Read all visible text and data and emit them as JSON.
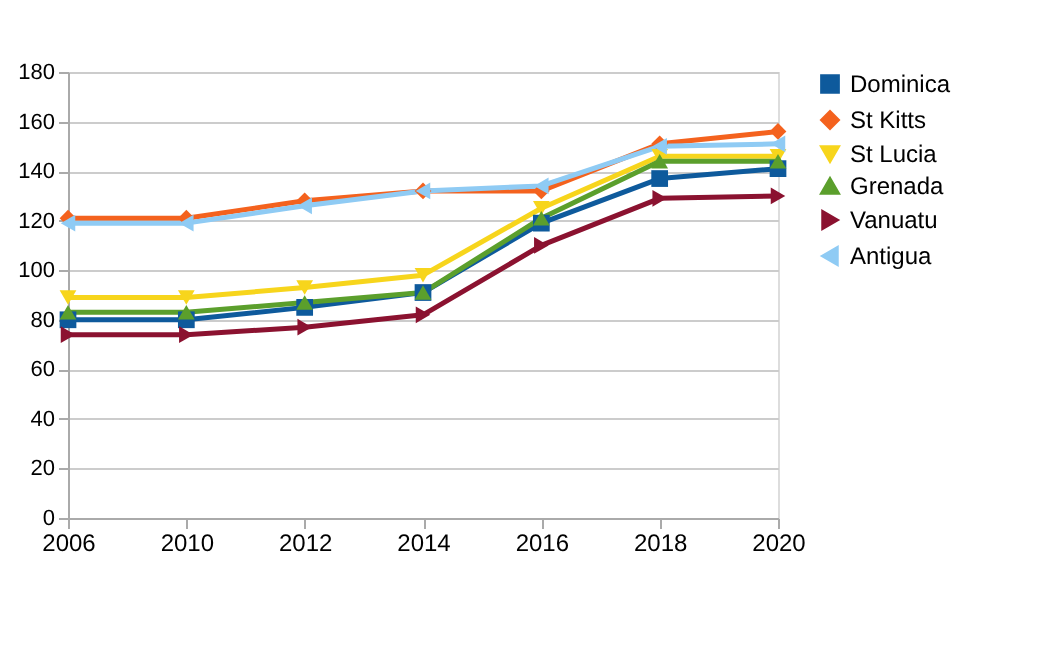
{
  "chart_data": {
    "type": "line",
    "categories": [
      "2006",
      "2010",
      "2012",
      "2014",
      "2016",
      "2018",
      "2020"
    ],
    "series": [
      {
        "name": "Dominica",
        "color": "#0e5a9c",
        "marker": "square",
        "values": [
          80,
          80,
          85,
          91,
          119,
          137,
          141
        ]
      },
      {
        "name": "St Kitts",
        "color": "#f4621e",
        "marker": "diamond",
        "values": [
          121,
          121,
          128,
          132,
          132,
          151,
          156
        ]
      },
      {
        "name": "St Lucia",
        "color": "#f7d51c",
        "marker": "triangle-down",
        "values": [
          89,
          89,
          93,
          98,
          125,
          146,
          146
        ]
      },
      {
        "name": "Grenada",
        "color": "#5b9f2c",
        "marker": "triangle-up",
        "values": [
          83,
          83,
          87,
          91,
          121,
          144,
          144
        ]
      },
      {
        "name": "Vanuatu",
        "color": "#8b1230",
        "marker": "triangle-right",
        "values": [
          74,
          74,
          77,
          82,
          110,
          129,
          130
        ]
      },
      {
        "name": "Antigua",
        "color": "#8fcbf4",
        "marker": "triangle-left",
        "values": [
          119,
          119,
          126,
          132,
          134,
          150,
          151
        ]
      }
    ],
    "ylim": [
      0,
      180
    ],
    "yticks": [
      0,
      20,
      40,
      60,
      80,
      100,
      120,
      140,
      160,
      180
    ],
    "grid": "y",
    "legend": "right",
    "line_style": "solid"
  }
}
